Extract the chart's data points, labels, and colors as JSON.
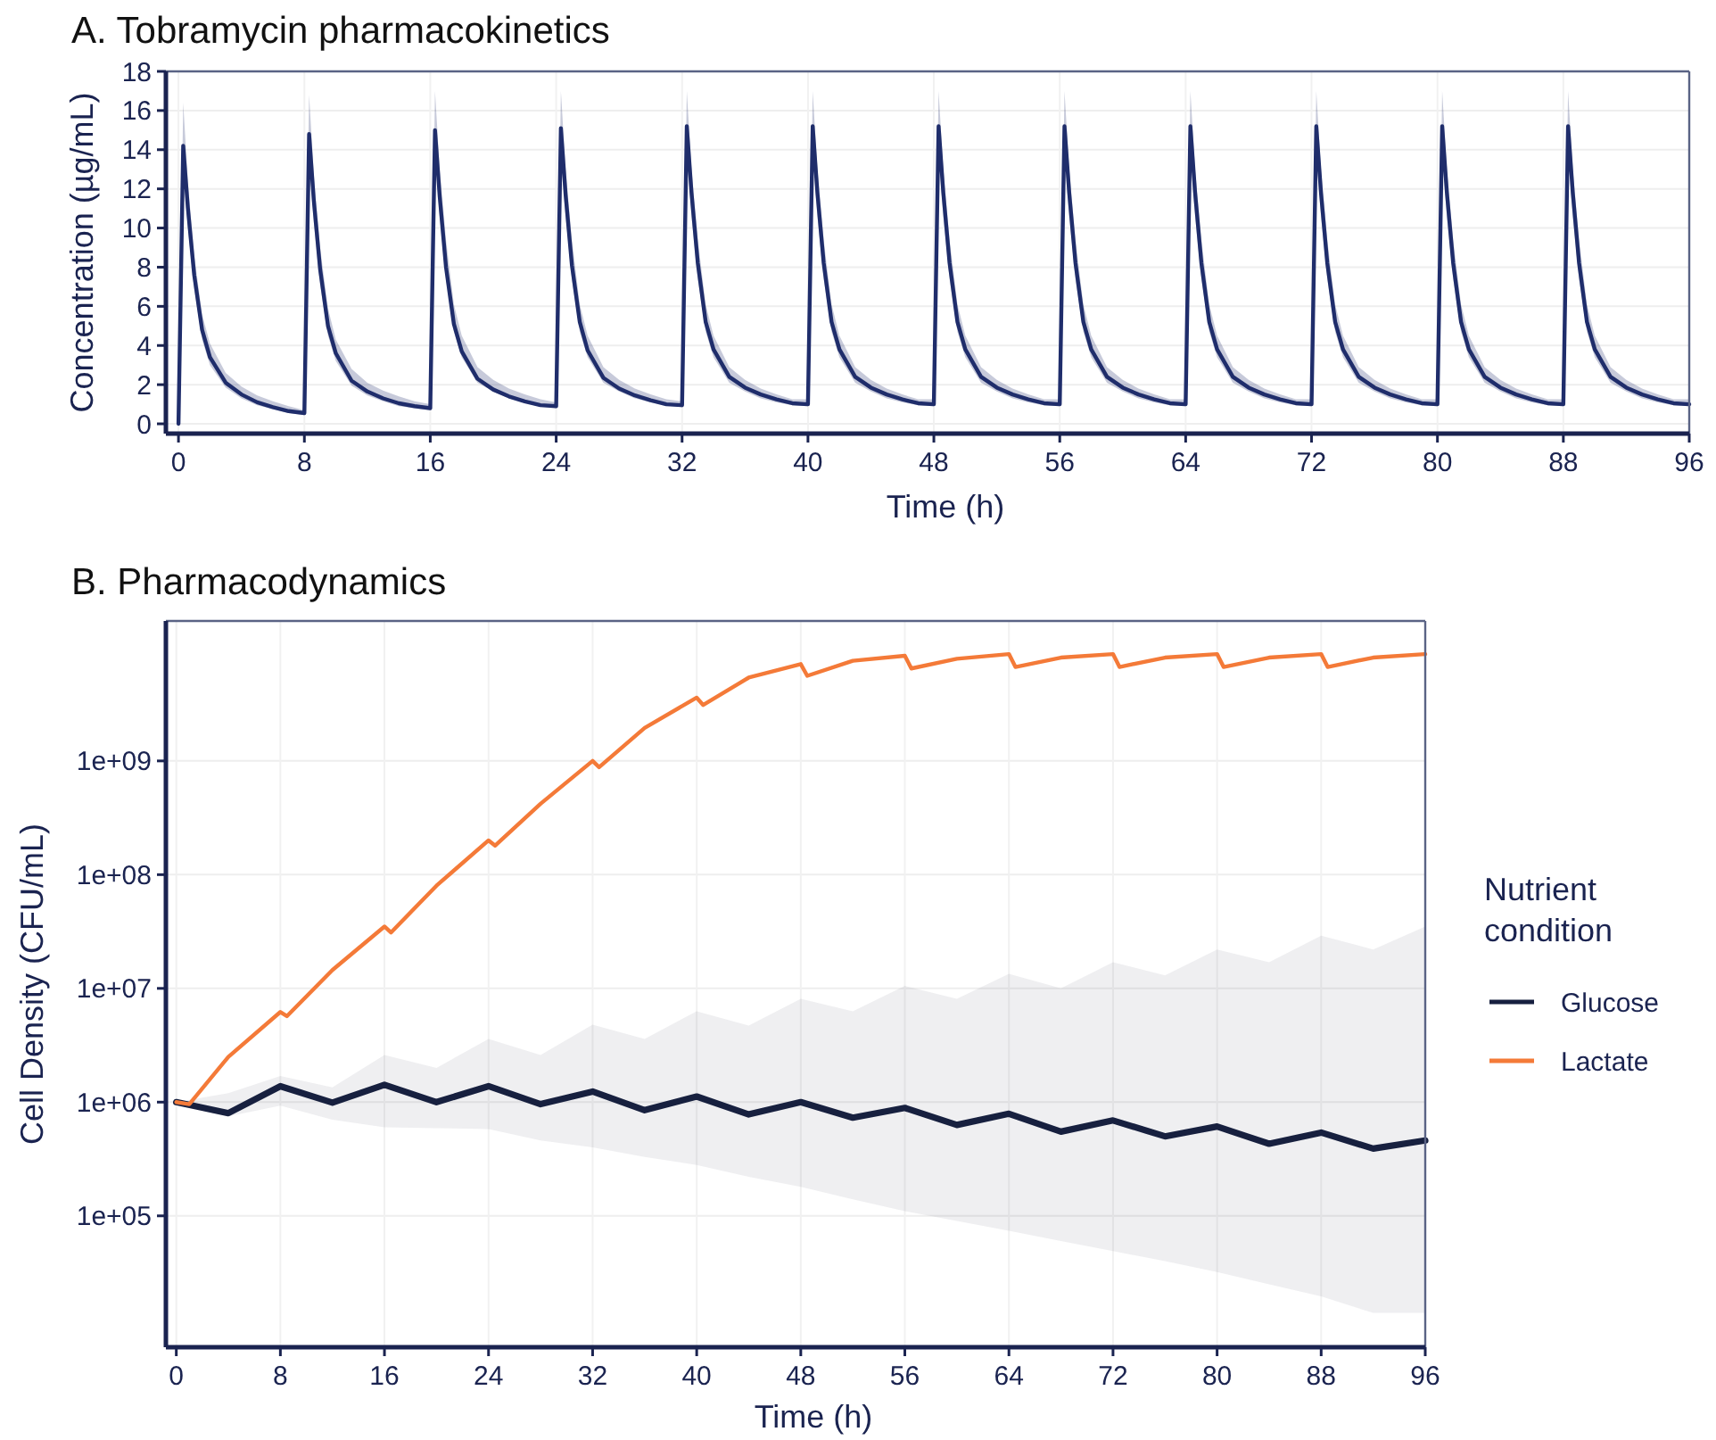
{
  "chart_data": [
    {
      "type": "line",
      "title": "A. Tobramycin pharmacokinetics",
      "xlabel": "Time (h)",
      "ylabel": "Concentration (µg/mL)",
      "xlim": [
        -0.8,
        96
      ],
      "ylim": [
        -0.5,
        18
      ],
      "xticks": [
        0,
        8,
        16,
        24,
        32,
        40,
        48,
        56,
        64,
        72,
        80,
        88,
        96
      ],
      "yticks": [
        0,
        2,
        4,
        6,
        8,
        10,
        12,
        14,
        16,
        18
      ],
      "grid": true,
      "x": [
        0,
        0.3,
        0.6,
        1,
        1.5,
        2,
        3,
        4,
        5,
        6,
        7,
        8,
        8.3,
        8.6,
        9,
        9.5,
        10,
        11,
        12,
        13,
        14,
        15,
        16,
        16.3,
        16.6,
        17,
        17.5,
        18,
        19,
        20,
        21,
        22,
        23,
        24,
        24.3,
        24.6,
        25,
        25.5,
        26,
        27,
        28,
        29,
        30,
        31,
        32,
        32.3,
        32.6,
        33,
        33.5,
        34,
        35,
        36,
        37,
        38,
        39,
        40,
        40.3,
        40.6,
        41,
        41.5,
        42,
        43,
        44,
        45,
        46,
        47,
        48,
        48.3,
        48.6,
        49,
        49.5,
        50,
        51,
        52,
        53,
        54,
        55,
        56,
        56.3,
        56.6,
        57,
        57.5,
        58,
        59,
        60,
        61,
        62,
        63,
        64,
        64.3,
        64.6,
        65,
        65.5,
        66,
        67,
        68,
        69,
        70,
        71,
        72,
        72.3,
        72.6,
        73,
        73.5,
        74,
        75,
        76,
        77,
        78,
        79,
        80,
        80.3,
        80.6,
        81,
        81.5,
        82,
        83,
        84,
        85,
        86,
        87,
        88,
        88.3,
        88.6,
        89,
        89.5,
        90,
        91,
        92,
        93,
        94,
        95,
        96
      ],
      "series": [
        {
          "color": "#1f2d6b",
          "values": [
            0,
            14.2,
            11.0,
            7.6,
            4.8,
            3.4,
            2.1,
            1.5,
            1.1,
            0.85,
            0.65,
            0.55,
            14.8,
            11.4,
            7.9,
            5.0,
            3.6,
            2.2,
            1.65,
            1.3,
            1.05,
            0.9,
            0.8,
            15.0,
            11.6,
            8.0,
            5.1,
            3.7,
            2.3,
            1.75,
            1.4,
            1.15,
            0.95,
            0.9,
            15.1,
            11.7,
            8.1,
            5.2,
            3.75,
            2.35,
            1.8,
            1.45,
            1.2,
            1.0,
            0.95,
            15.2,
            11.8,
            8.2,
            5.2,
            3.8,
            2.4,
            1.85,
            1.5,
            1.25,
            1.05,
            1.0,
            15.2,
            11.8,
            8.2,
            5.2,
            3.8,
            2.4,
            1.85,
            1.5,
            1.25,
            1.05,
            1.0,
            15.2,
            11.8,
            8.2,
            5.2,
            3.8,
            2.4,
            1.85,
            1.5,
            1.25,
            1.05,
            1.0,
            15.2,
            11.8,
            8.2,
            5.2,
            3.8,
            2.4,
            1.85,
            1.5,
            1.25,
            1.05,
            1.0,
            15.2,
            11.8,
            8.2,
            5.2,
            3.8,
            2.4,
            1.85,
            1.5,
            1.25,
            1.05,
            1.0,
            15.2,
            11.8,
            8.2,
            5.2,
            3.8,
            2.4,
            1.85,
            1.5,
            1.25,
            1.05,
            1.0,
            15.2,
            11.8,
            8.2,
            5.2,
            3.8,
            2.4,
            1.85,
            1.5,
            1.25,
            1.05,
            1.0,
            15.2,
            11.8,
            8.2,
            5.2,
            3.8,
            2.4,
            1.85,
            1.5,
            1.25,
            1.05,
            1.0
          ],
          "lower": [
            0,
            13.0,
            10.0,
            6.9,
            4.3,
            3.0,
            1.85,
            1.3,
            0.95,
            0.75,
            0.55,
            0.45,
            13.5,
            10.3,
            7.1,
            4.5,
            3.2,
            1.95,
            1.45,
            1.15,
            0.9,
            0.8,
            0.7,
            13.8,
            10.6,
            7.4,
            4.7,
            3.4,
            2.1,
            1.65,
            1.3,
            1.1,
            0.95,
            0.8,
            13.8,
            10.6,
            7.4,
            4.7,
            3.4,
            2.1,
            1.65,
            1.3,
            1.1,
            0.95,
            0.85,
            13.8,
            10.6,
            7.4,
            4.7,
            3.4,
            2.1,
            1.65,
            1.3,
            1.1,
            0.95,
            0.9,
            13.8,
            10.6,
            7.4,
            4.7,
            3.4,
            2.1,
            1.65,
            1.3,
            1.1,
            0.95,
            0.9,
            13.8,
            10.6,
            7.4,
            4.7,
            3.4,
            2.1,
            1.65,
            1.3,
            1.1,
            0.95,
            0.9,
            13.8,
            10.6,
            7.4,
            4.7,
            3.4,
            2.1,
            1.65,
            1.3,
            1.1,
            0.95,
            0.9,
            13.8,
            10.6,
            7.4,
            4.7,
            3.4,
            2.1,
            1.65,
            1.3,
            1.1,
            0.95,
            0.9,
            13.8,
            10.6,
            7.4,
            4.7,
            3.4,
            2.1,
            1.65,
            1.3,
            1.1,
            0.95,
            0.9,
            13.8,
            10.6,
            7.4,
            4.7,
            3.4,
            2.1,
            1.65,
            1.3,
            1.1,
            0.95,
            0.9,
            13.8,
            10.6,
            7.4,
            4.7,
            3.4,
            2.1,
            1.65,
            1.3,
            1.1,
            0.95,
            0.9
          ],
          "upper": [
            0,
            16.4,
            12.3,
            8.6,
            5.6,
            4.1,
            2.6,
            1.9,
            1.45,
            1.15,
            0.9,
            0.7,
            16.8,
            12.7,
            9.0,
            5.9,
            4.3,
            2.8,
            2.1,
            1.7,
            1.4,
            1.15,
            1.0,
            17.0,
            13.0,
            9.4,
            6.1,
            4.5,
            2.9,
            2.25,
            1.8,
            1.5,
            1.25,
            1.1,
            17.0,
            13.0,
            9.4,
            6.1,
            4.5,
            2.9,
            2.25,
            1.8,
            1.5,
            1.25,
            1.15,
            17.0,
            13.0,
            9.4,
            6.1,
            4.5,
            2.9,
            2.25,
            1.8,
            1.5,
            1.25,
            1.25,
            17.0,
            13.0,
            9.4,
            6.1,
            4.5,
            2.9,
            2.25,
            1.8,
            1.5,
            1.25,
            1.25,
            17.0,
            13.0,
            9.4,
            6.1,
            4.5,
            2.9,
            2.25,
            1.8,
            1.5,
            1.25,
            1.25,
            17.0,
            13.0,
            9.4,
            6.1,
            4.5,
            2.9,
            2.25,
            1.8,
            1.5,
            1.25,
            1.25,
            17.0,
            13.0,
            9.4,
            6.1,
            4.5,
            2.9,
            2.25,
            1.8,
            1.5,
            1.25,
            1.25,
            17.0,
            13.0,
            9.4,
            6.1,
            4.5,
            2.9,
            2.25,
            1.8,
            1.5,
            1.25,
            1.25,
            17.0,
            13.0,
            9.4,
            6.1,
            4.5,
            2.9,
            2.25,
            1.8,
            1.5,
            1.25,
            1.25,
            17.0,
            13.0,
            9.4,
            6.1,
            4.5,
            2.9,
            2.25,
            1.8,
            1.5,
            1.25,
            1.25
          ]
        }
      ]
    },
    {
      "type": "line",
      "title": "B. Pharmacodynamics",
      "xlabel": "Time (h)",
      "ylabel": "Cell Density (CFU/mL)",
      "legend_title": "Nutrient condition",
      "legend": "right",
      "log": true,
      "grid": true,
      "xlim": [
        -0.8,
        96
      ],
      "ylim": [
        7000,
        17000000000
      ],
      "xticks": [
        0,
        8,
        16,
        24,
        32,
        40,
        48,
        56,
        64,
        72,
        80,
        88,
        96
      ],
      "yticks": [
        {
          "value": 100000,
          "label": "1e+05"
        },
        {
          "value": 1000000,
          "label": "1e+06"
        },
        {
          "value": 10000000,
          "label": "1e+07"
        },
        {
          "value": 100000000,
          "label": "1e+08"
        },
        {
          "value": 1000000000,
          "label": "1e+09"
        }
      ],
      "series": [
        {
          "name": "Glucose",
          "color": "#17203f",
          "x": [
            0,
            4,
            8,
            12,
            16,
            20,
            24,
            28,
            32,
            36,
            40,
            44,
            48,
            52,
            56,
            60,
            64,
            68,
            72,
            76,
            80,
            84,
            88,
            92,
            96
          ],
          "values": [
            1000000,
            800000,
            1380000,
            990000,
            1420000,
            1000000,
            1380000,
            960000,
            1240000,
            850000,
            1120000,
            780000,
            1000000,
            730000,
            890000,
            630000,
            790000,
            550000,
            690000,
            500000,
            610000,
            430000,
            540000,
            390000,
            460000
          ],
          "upper": [
            1000000,
            1200000,
            1700000,
            1350000,
            2600000,
            2000000,
            3600000,
            2600000,
            4800000,
            3600000,
            6300000,
            4700000,
            8100000,
            6300000,
            10500000,
            8100000,
            13400000,
            10000000,
            17000000,
            13000000,
            22000000,
            17000000,
            29000000,
            22000000,
            35000000
          ],
          "lower": [
            1000000,
            750000,
            930000,
            700000,
            600000,
            590000,
            580000,
            460000,
            400000,
            330000,
            280000,
            220000,
            180000,
            140000,
            110000,
            90000,
            74000,
            60000,
            49000,
            40000,
            32000,
            25000,
            19600,
            14000,
            14000
          ]
        },
        {
          "name": "Lactate",
          "color": "#f47a38",
          "x": [
            0,
            1,
            4,
            8,
            8.5,
            12,
            16,
            16.5,
            20,
            24,
            24.5,
            28,
            32,
            32.5,
            36,
            40,
            40.5,
            44,
            48,
            48.5,
            52,
            56,
            56.5,
            60,
            64,
            64.5,
            68,
            72,
            72.5,
            76,
            80,
            80.5,
            84,
            88,
            88.5,
            92,
            96
          ],
          "values": [
            1000000,
            960000,
            2500000,
            6200000,
            5700000,
            14500000,
            35000000,
            31000000,
            80000000,
            200000000,
            180000000,
            420000000,
            1000000000,
            880000000,
            1950000000,
            3600000000,
            3100000000,
            5400000000,
            7100000000,
            5600000000,
            7600000000,
            8400000000,
            6500000000,
            7900000000,
            8700000000,
            6700000000,
            8100000000,
            8700000000,
            6700000000,
            8100000000,
            8700000000,
            6700000000,
            8100000000,
            8700000000,
            6700000000,
            8100000000,
            8700000000
          ]
        }
      ]
    }
  ]
}
